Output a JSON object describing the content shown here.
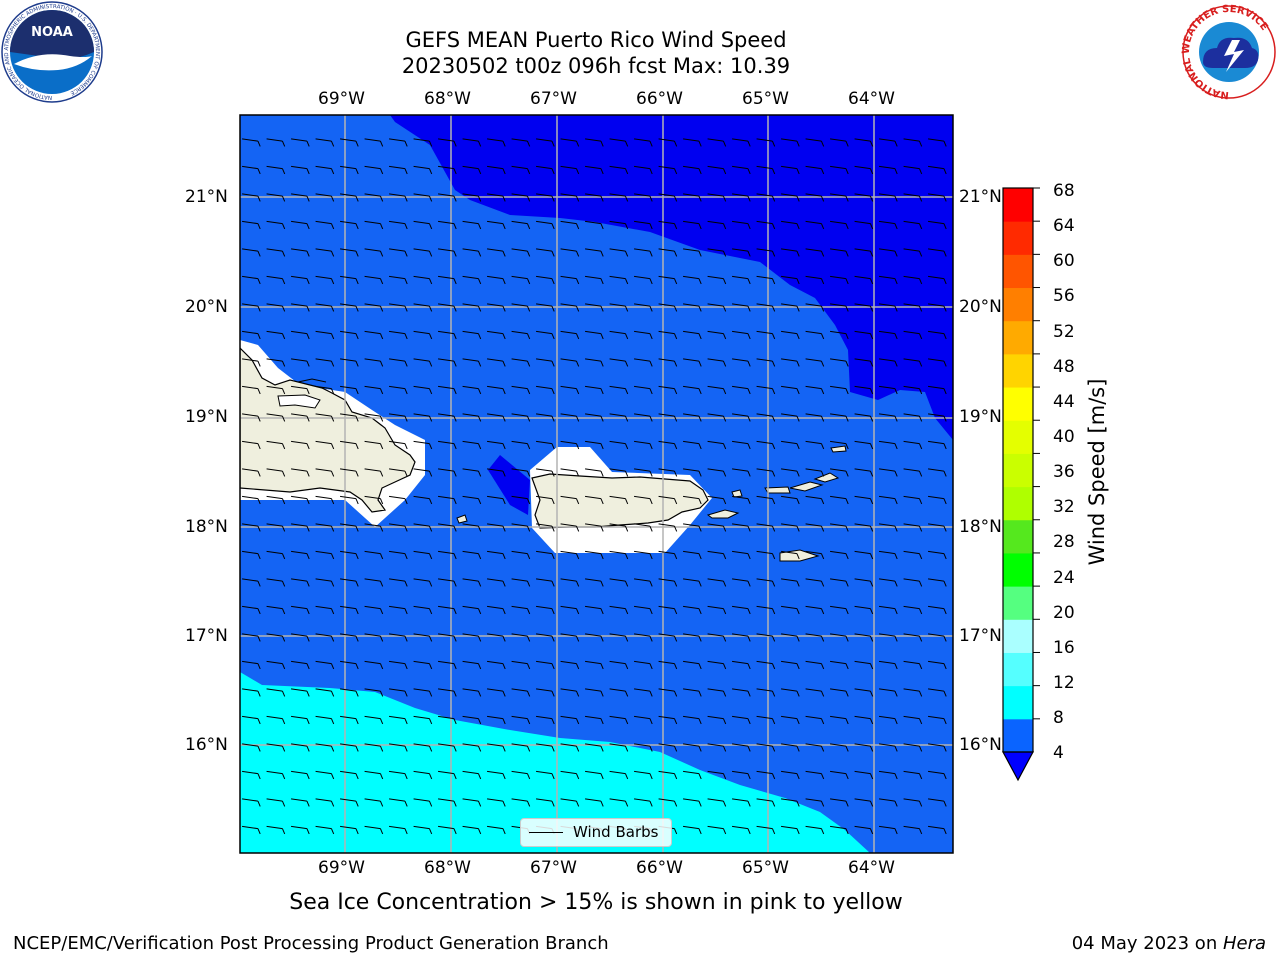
{
  "title": {
    "line1": "GEFS MEAN Puerto Rico Wind Speed",
    "line2": "20230502 t00z 096h fcst   Max: 10.39"
  },
  "axes": {
    "lon_labels": [
      "69°W",
      "68°W",
      "67°W",
      "66°W",
      "65°W",
      "64°W"
    ],
    "lat_labels": [
      "21°N",
      "20°N",
      "19°N",
      "18°N",
      "17°N",
      "16°N"
    ]
  },
  "colorbar": {
    "label": "Wind Speed [m/s]",
    "ticks": [
      "68",
      "64",
      "60",
      "56",
      "52",
      "48",
      "44",
      "40",
      "36",
      "32",
      "28",
      "24",
      "20",
      "16",
      "12",
      "8",
      "4"
    ],
    "colors": [
      "#ff0000",
      "#ff2a00",
      "#ff5500",
      "#ff7f00",
      "#ffaa00",
      "#ffd400",
      "#ffff00",
      "#e4ff00",
      "#caff00",
      "#afff00",
      "#55e81e",
      "#00ff00",
      "#55ff80",
      "#aaffff",
      "#55ffff",
      "#00ffff",
      "#0a64ff"
    ],
    "under_color": "#0000ff"
  },
  "field_colors": {
    "speed_4_8": "#1464f4",
    "speed_lt_4": "#0000f0",
    "speed_8_12": "#00ffff",
    "land": "#efefde",
    "masked": "#ffffff"
  },
  "legend": {
    "label": "Wind Barbs"
  },
  "caption": "Sea Ice Concentration > 15% is shown in pink to yellow",
  "footer": {
    "left": "NCEP/EMC/Verification Post Processing Product Generation Branch",
    "right_date": "04 May 2023 on ",
    "right_machine": "Hera"
  },
  "logos": {
    "noaa": {
      "text": "NOAA",
      "ring_text": "NATIONAL OCEANIC AND ATMOSPHERIC ADMINISTRATION · U.S. DEPARTMENT OF COMMERCE"
    },
    "nws": {
      "ring_text": "NATIONAL WEATHER SERVICE"
    }
  }
}
